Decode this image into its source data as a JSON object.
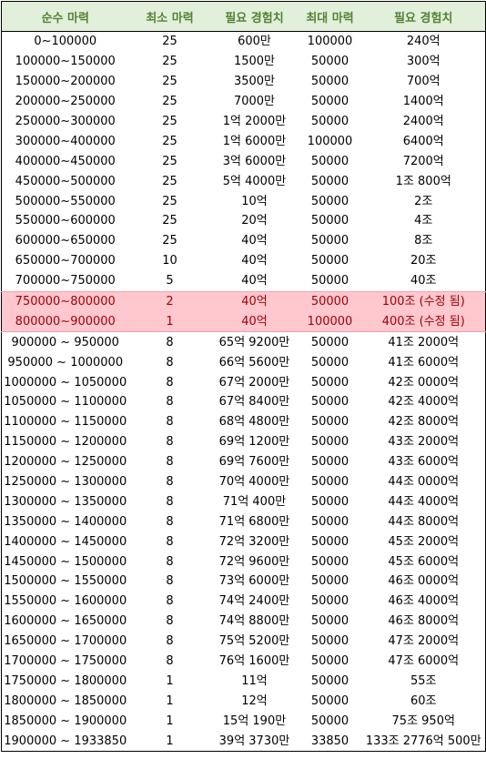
{
  "headers": [
    "순수 마력",
    "최소 마력",
    "필요 경험치",
    "최대 마력",
    "필요 경험치"
  ],
  "rows": [
    [
      "0~100000",
      "25",
      "600만",
      "100000",
      "240억"
    ],
    [
      "100000~150000",
      "25",
      "1500만",
      "50000",
      "300억"
    ],
    [
      "150000~200000",
      "25",
      "3500만",
      "50000",
      "700억"
    ],
    [
      "200000~250000",
      "25",
      "7000만",
      "50000",
      "1400억"
    ],
    [
      "250000~300000",
      "25",
      "1억 2000만",
      "50000",
      "2400억"
    ],
    [
      "300000~400000",
      "25",
      "1억 6000만",
      "100000",
      "6400억"
    ],
    [
      "400000~450000",
      "25",
      "3억 6000만",
      "50000",
      "7200억"
    ],
    [
      "450000~500000",
      "25",
      "5억 4000만",
      "50000",
      "1조 800억"
    ],
    [
      "500000~550000",
      "25",
      "10억",
      "50000",
      "2조"
    ],
    [
      "550000~600000",
      "25",
      "20억",
      "50000",
      "4조"
    ],
    [
      "600000~650000",
      "25",
      "40억",
      "50000",
      "8조"
    ],
    [
      "650000~700000",
      "10",
      "40억",
      "50000",
      "20조"
    ],
    [
      "700000~750000",
      "5",
      "40억",
      "50000",
      "40조"
    ],
    [
      "750000~800000",
      "2",
      "40억",
      "50000",
      "100조 (수정 됨)"
    ],
    [
      "800000~900000",
      "1",
      "40억",
      "100000",
      "400조 (수정 됨)"
    ],
    [
      "900000 ~ 950000",
      "8",
      "65억 9200만",
      "50000",
      "41조 2000억"
    ],
    [
      "950000 ~ 1000000",
      "8",
      "66억 5600만",
      "50000",
      "41조 6000억"
    ],
    [
      "1000000 ~ 1050000",
      "8",
      "67억 2000만",
      "50000",
      "42조 0000억"
    ],
    [
      "1050000 ~ 1100000",
      "8",
      "67억 8400만",
      "50000",
      "42조 4000억"
    ],
    [
      "1100000 ~ 1150000",
      "8",
      "68억 4800만",
      "50000",
      "42조 8000억"
    ],
    [
      "1150000 ~ 1200000",
      "8",
      "69억 1200만",
      "50000",
      "43조 2000억"
    ],
    [
      "1200000 ~ 1250000",
      "8",
      "69억 7600만",
      "50000",
      "43조 6000억"
    ],
    [
      "1250000 ~ 1300000",
      "8",
      "70억 4000만",
      "50000",
      "44조 0000억"
    ],
    [
      "1300000 ~ 1350000",
      "8",
      "71억 400만",
      "50000",
      "44조 4000억"
    ],
    [
      "1350000 ~ 1400000",
      "8",
      "71억 6800만",
      "50000",
      "44조 8000억"
    ],
    [
      "1400000 ~ 1450000",
      "8",
      "72억 3200만",
      "50000",
      "45조 2000억"
    ],
    [
      "1450000 ~ 1500000",
      "8",
      "72억 9600만",
      "50000",
      "45조 6000억"
    ],
    [
      "1500000 ~ 1550000",
      "8",
      "73억 6000만",
      "50000",
      "46조 0000억"
    ],
    [
      "1550000 ~ 1600000",
      "8",
      "74억 2400만",
      "50000",
      "46조 4000억"
    ],
    [
      "1600000 ~ 1650000",
      "8",
      "74억 8800만",
      "50000",
      "46조 8000억"
    ],
    [
      "1650000 ~ 1700000",
      "8",
      "75억 5200만",
      "50000",
      "47조 2000억"
    ],
    [
      "1700000 ~ 1750000",
      "8",
      "76억 1600만",
      "50000",
      "47조 6000억"
    ],
    [
      "1750000 ~ 1800000",
      "1",
      "11억",
      "50000",
      "55조"
    ],
    [
      "1800000 ~ 1850000",
      "1",
      "12억",
      "50000",
      "60조"
    ],
    [
      "1850000 ~ 1900000",
      "1",
      "15억 190만",
      "50000",
      "75조 950억"
    ],
    [
      "1900000 ~ 1933850",
      "1",
      "39억 3730만",
      "33850",
      "133조 2776억 500만"
    ]
  ],
  "highlighted_rows": [
    13,
    14
  ],
  "colors": {
    "header_bg": "#e2efda",
    "header_text": "#548235",
    "highlight_bg": "#ffc7ce",
    "highlight_text": "#9c0006"
  }
}
